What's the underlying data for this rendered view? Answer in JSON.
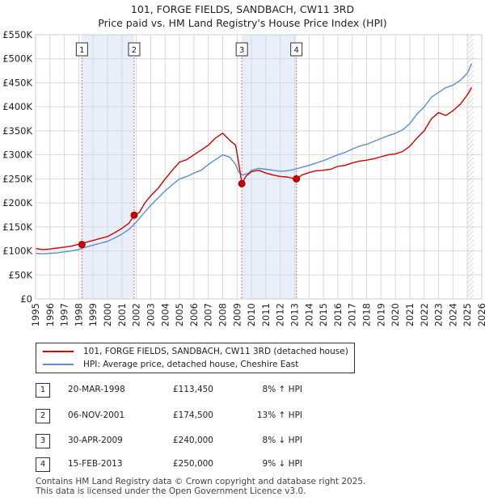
{
  "chart_data": {
    "type": "line",
    "title": "101, FORGE FIELDS, SANDBACH, CW11 3RD",
    "subtitle": "Price paid vs. HM Land Registry's House Price Index (HPI)",
    "xlabel": "",
    "ylabel": "",
    "xlim": [
      1995,
      2026
    ],
    "ylim": [
      0,
      550000
    ],
    "y_ticks": [
      {
        "value": 0,
        "label": "£0"
      },
      {
        "value": 50000,
        "label": "£50K"
      },
      {
        "value": 100000,
        "label": "£100K"
      },
      {
        "value": 150000,
        "label": "£150K"
      },
      {
        "value": 200000,
        "label": "£200K"
      },
      {
        "value": 250000,
        "label": "£250K"
      },
      {
        "value": 300000,
        "label": "£300K"
      },
      {
        "value": 350000,
        "label": "£350K"
      },
      {
        "value": 400000,
        "label": "£400K"
      },
      {
        "value": 450000,
        "label": "£450K"
      },
      {
        "value": 500000,
        "label": "£500K"
      },
      {
        "value": 550000,
        "label": "£550K"
      }
    ],
    "x_ticks": [
      "1995",
      "1996",
      "1997",
      "1998",
      "1999",
      "2000",
      "2001",
      "2002",
      "2003",
      "2004",
      "2005",
      "2006",
      "2007",
      "2008",
      "2009",
      "2010",
      "2011",
      "2012",
      "2013",
      "2014",
      "2015",
      "2016",
      "2017",
      "2018",
      "2019",
      "2020",
      "2021",
      "2022",
      "2023",
      "2024",
      "2025",
      "2026"
    ],
    "grid": true,
    "shaded_periods": [
      [
        1998.22,
        2001.85
      ],
      [
        2009.33,
        2013.12
      ]
    ],
    "forecast_start": 2025.0,
    "series": [
      {
        "name": "101, FORGE FIELDS, SANDBACH, CW11 3RD (detached house)",
        "color": "#cc0000",
        "x": [
          1995.0,
          1995.5,
          1996.0,
          1996.5,
          1997.0,
          1997.5,
          1998.0,
          1998.22,
          1998.5,
          1999.0,
          1999.5,
          2000.0,
          2000.5,
          2001.0,
          2001.5,
          2001.85,
          2002.2,
          2002.6,
          2003.0,
          2003.5,
          2004.0,
          2004.5,
          2005.0,
          2005.5,
          2006.0,
          2006.5,
          2007.0,
          2007.5,
          2008.0,
          2008.5,
          2008.9,
          2009.1,
          2009.33,
          2009.6,
          2010.0,
          2010.5,
          2011.0,
          2011.5,
          2012.0,
          2012.5,
          2013.0,
          2013.12,
          2013.5,
          2014.0,
          2014.5,
          2015.0,
          2015.5,
          2016.0,
          2016.5,
          2017.0,
          2017.5,
          2018.0,
          2018.5,
          2019.0,
          2019.5,
          2020.0,
          2020.5,
          2021.0,
          2021.5,
          2022.0,
          2022.5,
          2023.0,
          2023.5,
          2024.0,
          2024.5,
          2025.0,
          2025.3
        ],
        "values": [
          105000,
          103000,
          104000,
          106000,
          108000,
          110000,
          114000,
          113450,
          118000,
          122000,
          126000,
          130000,
          138000,
          147000,
          158000,
          174500,
          180000,
          200000,
          215000,
          230000,
          250000,
          268000,
          285000,
          290000,
          300000,
          310000,
          320000,
          335000,
          345000,
          330000,
          320000,
          285000,
          240000,
          255000,
          265000,
          268000,
          262000,
          258000,
          255000,
          254000,
          250000,
          250000,
          258000,
          263000,
          267000,
          268000,
          270000,
          276000,
          278000,
          283000,
          287000,
          289000,
          292000,
          296000,
          300000,
          302000,
          307000,
          318000,
          335000,
          350000,
          375000,
          388000,
          382000,
          392000,
          405000,
          425000,
          440000
        ]
      },
      {
        "name": "HPI: Average price, detached house, Cheshire East",
        "color": "#5a8fd0",
        "x": [
          1995.0,
          1995.5,
          1996.0,
          1996.5,
          1997.0,
          1997.5,
          1998.0,
          1998.5,
          1999.0,
          1999.5,
          2000.0,
          2000.5,
          2001.0,
          2001.5,
          2002.0,
          2002.5,
          2003.0,
          2003.5,
          2004.0,
          2004.5,
          2005.0,
          2005.5,
          2006.0,
          2006.5,
          2007.0,
          2007.5,
          2008.0,
          2008.5,
          2008.9,
          2009.1,
          2009.4,
          2009.8,
          2010.0,
          2010.5,
          2011.0,
          2011.5,
          2012.0,
          2012.5,
          2013.0,
          2013.5,
          2014.0,
          2014.5,
          2015.0,
          2015.5,
          2016.0,
          2016.5,
          2017.0,
          2017.5,
          2018.0,
          2018.5,
          2019.0,
          2019.5,
          2020.0,
          2020.5,
          2021.0,
          2021.5,
          2022.0,
          2022.5,
          2023.0,
          2023.5,
          2024.0,
          2024.5,
          2025.0,
          2025.3
        ],
        "values": [
          95000,
          94000,
          95000,
          96000,
          98000,
          100000,
          103000,
          108000,
          112000,
          116000,
          120000,
          127000,
          135000,
          145000,
          160000,
          178000,
          195000,
          210000,
          225000,
          238000,
          250000,
          255000,
          262000,
          268000,
          280000,
          290000,
          300000,
          295000,
          280000,
          265000,
          258000,
          262000,
          268000,
          272000,
          270000,
          268000,
          266000,
          267000,
          270000,
          274000,
          278000,
          283000,
          288000,
          294000,
          300000,
          305000,
          312000,
          318000,
          322000,
          328000,
          334000,
          340000,
          345000,
          352000,
          365000,
          385000,
          400000,
          420000,
          430000,
          440000,
          445000,
          455000,
          470000,
          490000
        ]
      }
    ],
    "sales": [
      {
        "num": "1",
        "x": 1998.22,
        "value": 113450,
        "date": "20-MAR-1998",
        "price": "£113,450",
        "hpi": "8% ↑ HPI"
      },
      {
        "num": "2",
        "x": 2001.85,
        "value": 174500,
        "date": "06-NOV-2001",
        "price": "£174,500",
        "hpi": "13% ↑ HPI"
      },
      {
        "num": "3",
        "x": 2009.33,
        "value": 240000,
        "date": "30-APR-2009",
        "price": "£240,000",
        "hpi": "8% ↓ HPI"
      },
      {
        "num": "4",
        "x": 2013.12,
        "value": 250000,
        "date": "15-FEB-2013",
        "price": "£250,000",
        "hpi": "9% ↓ HPI"
      }
    ]
  },
  "legend": {
    "property_label": "101, FORGE FIELDS, SANDBACH, CW11 3RD (detached house)",
    "hpi_label": "HPI: Average price, detached house, Cheshire East"
  },
  "colors": {
    "property": "#cc0000",
    "hpi": "#5a8fd0",
    "shade": "#e8eefa",
    "marker_line": "#e07070"
  },
  "footer": {
    "line1": "Contains HM Land Registry data © Crown copyright and database right 2025.",
    "line2": "This data is licensed under the Open Government Licence v3.0."
  }
}
